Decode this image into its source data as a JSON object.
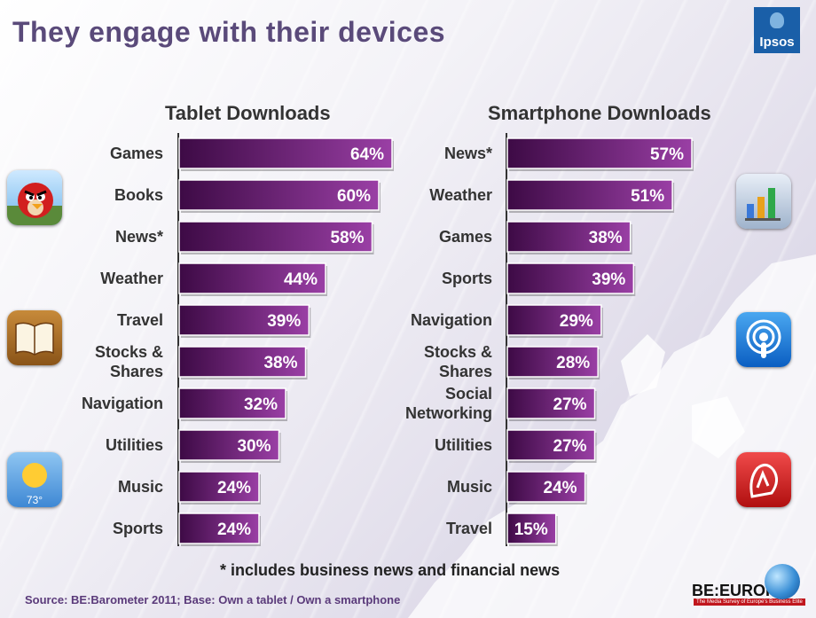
{
  "title": "They engage with their devices",
  "logo_text": "Ipsos",
  "footnote": "* includes business news and financial news",
  "source": "Source: BE:Barometer 2011; Base: Own a tablet / Own a smartphone",
  "brand": {
    "name": "BE:EUROPE",
    "tagline": "The Media Survey of Europe's Business Elite"
  },
  "colors": {
    "bar_dark": "#3d0a45",
    "bar_light": "#9a3fa5",
    "title": "#5a4a7a"
  },
  "icons": {
    "left": [
      "angry-birds-app-icon",
      "ibooks-app-icon",
      "weather-app-icon"
    ],
    "right": [
      "numbers-app-icon",
      "podcasts-app-icon",
      "navigation-app-icon"
    ],
    "weather_temp": "73°"
  },
  "chart_data": [
    {
      "type": "bar",
      "orientation": "horizontal",
      "title": "Tablet Downloads",
      "categories": [
        "Games",
        "Books",
        "News*",
        "Weather",
        "Travel",
        "Stocks & Shares",
        "Navigation",
        "Utilities",
        "Music",
        "Sports"
      ],
      "values": [
        64,
        60,
        58,
        44,
        39,
        38,
        32,
        30,
        24,
        24
      ],
      "value_labels": [
        "64%",
        "60%",
        "58%",
        "44%",
        "39%",
        "38%",
        "32%",
        "30%",
        "24%",
        "24%"
      ],
      "unit": "%",
      "xlim": [
        0,
        64
      ]
    },
    {
      "type": "bar",
      "orientation": "horizontal",
      "title": "Smartphone Downloads",
      "categories": [
        "News*",
        "Weather",
        "Games",
        "Sports",
        "Navigation",
        "Stocks & Shares",
        "Social Networking",
        "Utilities",
        "Music",
        "Travel"
      ],
      "values": [
        57,
        51,
        38,
        39,
        29,
        28,
        27,
        27,
        24,
        15
      ],
      "value_labels": [
        "57%",
        "51%",
        "38%",
        "39%",
        "29%",
        "28%",
        "27%",
        "27%",
        "24%",
        "15%"
      ],
      "unit": "%",
      "xlim": [
        0,
        57
      ]
    }
  ]
}
